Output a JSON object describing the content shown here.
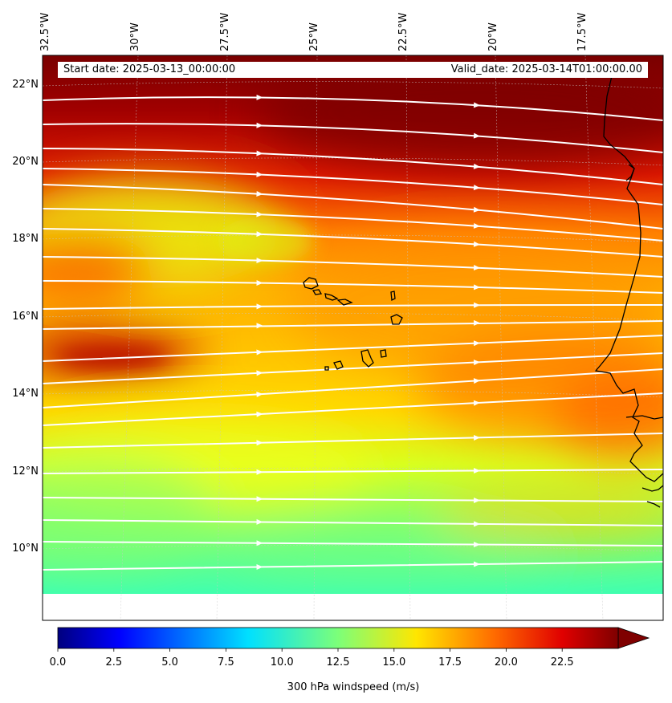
{
  "header": {
    "start_date": "Start date: 2025-03-13_00:00:00",
    "valid_date": "Valid_date: 2025-03-14T01:00:00.00"
  },
  "map": {
    "longitude_labels": [
      "32.5°W",
      "30°W",
      "27.5°W",
      "25°W",
      "22.5°W",
      "20°W",
      "17.5°W"
    ],
    "latitude_labels": [
      "22°N",
      "20°N",
      "18°N",
      "16°N",
      "14°N",
      "12°N",
      "10°N"
    ],
    "field": "300 hPa windspeed",
    "overlay": "streamlines",
    "coastlines": [
      "West African coast",
      "Cape Verde islands"
    ]
  },
  "colorbar": {
    "label": "300 hPa windspeed (m/s)",
    "ticks": [
      "0.0",
      "2.5",
      "5.0",
      "7.5",
      "10.0",
      "12.5",
      "15.0",
      "17.5",
      "20.0",
      "22.5"
    ],
    "colormap": "jet",
    "extend": "max",
    "range": [
      0,
      25
    ]
  },
  "colors": {
    "streamline": "#ffffff",
    "coastline": "#000000",
    "max_wind": "#800000",
    "min_wind": "#00007f"
  }
}
